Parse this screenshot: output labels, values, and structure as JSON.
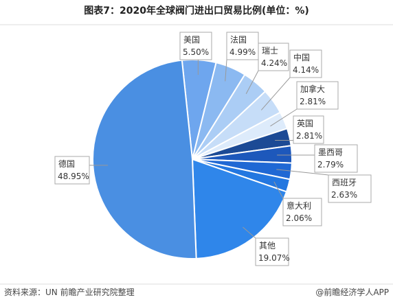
{
  "chart_data": {
    "type": "pie",
    "title": "图表7：2020年全球阀门进出口贸易比例(单位：%)",
    "categories": [
      "美国",
      "法国",
      "瑞士",
      "中国",
      "加拿大",
      "英国",
      "墨西哥",
      "西班牙",
      "意大利",
      "其他",
      "德国"
    ],
    "values": [
      5.5,
      4.99,
      4.24,
      4.14,
      2.81,
      2.81,
      2.79,
      2.63,
      2.06,
      19.07,
      48.95
    ],
    "value_labels": [
      "5.50%",
      "4.99%",
      "4.24%",
      "4.14%",
      "2.81%",
      "2.81%",
      "2.79%",
      "2.63%",
      "2.06%",
      "19.07%",
      "48.95%"
    ],
    "colors": [
      "#6ea6ee",
      "#8bb9f1",
      "#abcdf5",
      "#c6ddf8",
      "#ddebfb",
      "#1c4a95",
      "#1d58bb",
      "#1f68d4",
      "#2377e0",
      "#2f86ea",
      "#4a8fe2"
    ],
    "source": "资料来源：UN 前瞻产业研究院整理",
    "brand": "@前瞻经济学人APP"
  }
}
